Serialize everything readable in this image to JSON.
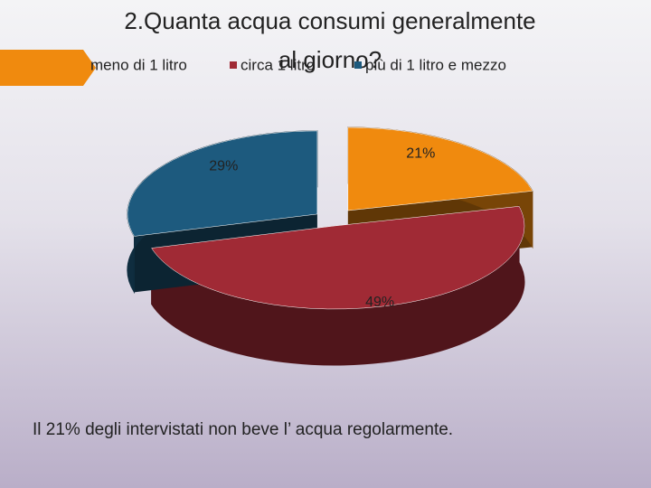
{
  "chart_data": {
    "type": "pie3d",
    "title": [
      "2.Quanta acqua consumi generalmente",
      "al giorno?"
    ],
    "categories": [
      "meno di 1 litro",
      "circa 1 litro",
      "più di 1 litro e mezzo"
    ],
    "values": [
      21,
      49,
      29
    ],
    "value_labels": [
      "21%",
      "49%",
      "29%"
    ],
    "colors": [
      "#f08a0e",
      "#a02a35",
      "#1d5a7e"
    ],
    "explode": [
      true,
      false,
      true
    ],
    "note": "Il 21% degli intervistati non beve l’ acqua regolarmente."
  }
}
